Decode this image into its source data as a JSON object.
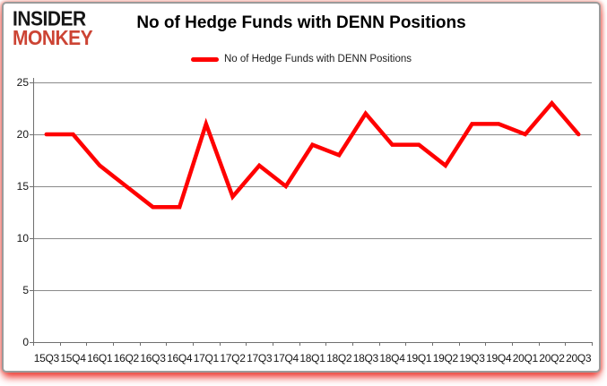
{
  "logo": {
    "line1": "INSIDER",
    "line2": "MONKEY"
  },
  "title": "No of Hedge Funds with DENN Positions",
  "legend": {
    "label": "No of Hedge Funds with DENN Positions",
    "color": "#ff0000"
  },
  "colors": {
    "series_red": "#ff0000",
    "logo_black": "#161616",
    "logo_red": "#cc4434",
    "card_border": "#9b9b9b",
    "grid_gray": "#8a8a8a",
    "axis_gray": "#6f6f6f",
    "glow_red": "#eb0a05"
  },
  "chart_data": {
    "type": "line",
    "title": "No of Hedge Funds with DENN Positions",
    "categories": [
      "15Q3",
      "15Q4",
      "16Q1",
      "16Q2",
      "16Q3",
      "16Q4",
      "17Q1",
      "17Q2",
      "17Q3",
      "17Q4",
      "18Q1",
      "18Q2",
      "18Q3",
      "18Q4",
      "19Q1",
      "19Q2",
      "19Q3",
      "19Q4",
      "20Q1",
      "20Q2",
      "20Q3"
    ],
    "series": [
      {
        "name": "No of Hedge Funds with DENN Positions",
        "color": "#ff0000",
        "values": [
          20,
          20,
          17,
          15,
          13,
          13,
          21,
          14,
          17,
          15,
          19,
          18,
          22,
          19,
          19,
          17,
          21,
          21,
          20,
          23,
          20
        ]
      }
    ],
    "ylim": [
      0,
      25
    ],
    "yticks": [
      0,
      5,
      10,
      15,
      20,
      25
    ],
    "grid": true,
    "legend_position": "top-center",
    "grid_color": "#8a8a8a",
    "axis_color": "#6f6f6f"
  }
}
